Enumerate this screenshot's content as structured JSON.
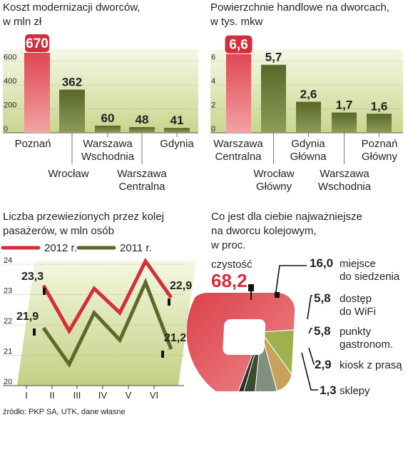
{
  "colors": {
    "red": "#d22f3c",
    "red_bar": "#e8515b",
    "olive": "#5b6a2a",
    "olive_bar": "#6b7a35",
    "green_light": "#9db24f",
    "tan": "#c7a25c",
    "grey_green": "#7f9080",
    "dark": "#2e2e2e",
    "bg_gradient_top": "#f4f7df",
    "bg_gradient_bottom": "#c9d58c"
  },
  "source_note": "źródło: PKP SA, UTK, dane własne",
  "chart_data": [
    {
      "type": "bar",
      "title_lines": [
        "Koszt modernizacji dworców,",
        "w mln zł"
      ],
      "ylim": [
        0,
        700
      ],
      "yticks": [
        "0",
        "200",
        "400",
        "600"
      ],
      "ytick_values": [
        0,
        200,
        400,
        600
      ],
      "categories": [
        "Poznań",
        "Wrocław",
        "Warszawa Wschodnia",
        "Warszawa Centralna",
        "Gdynia"
      ],
      "category_lines": [
        [
          "Poznań"
        ],
        [
          "Wrocław"
        ],
        [
          "Warszawa",
          "Wschodnia"
        ],
        [
          "Warszawa",
          "Centralna"
        ],
        [
          "Gdynia"
        ]
      ],
      "values": [
        670,
        362,
        60,
        48,
        41
      ],
      "value_labels": [
        "670",
        "362",
        "60",
        "48",
        "41"
      ]
    },
    {
      "type": "bar",
      "title_lines": [
        "Powierzchnie handlowe na dworcach,",
        "w tys. mkw"
      ],
      "ylim": [
        0,
        7
      ],
      "yticks": [
        "0",
        "2",
        "4",
        "6"
      ],
      "ytick_values": [
        0,
        2,
        4,
        6
      ],
      "categories": [
        "Warszawa Centralna",
        "Wrocław Główny",
        "Gdynia Główna",
        "Warszawa Wschodnia",
        "Poznań Główny"
      ],
      "category_lines": [
        [
          "Warszawa",
          "Centralna"
        ],
        [
          "Wrocław",
          "Główny"
        ],
        [
          "Gdynia",
          "Główna"
        ],
        [
          "Warszawa",
          "Wschodnia"
        ],
        [
          "Poznań",
          "Główny"
        ]
      ],
      "values": [
        6.6,
        5.7,
        2.6,
        1.7,
        1.6
      ],
      "value_labels": [
        "6,6",
        "5,7",
        "2,6",
        "1,7",
        "1,6"
      ]
    },
    {
      "type": "line",
      "title_lines": [
        "Liczba przewiezionych przez kolej",
        "pasażerów, w mln osób"
      ],
      "categories": [
        "I",
        "II",
        "III",
        "IV",
        "V",
        "VI"
      ],
      "ylim": [
        20,
        24
      ],
      "yticks": [
        "20",
        "21",
        "22",
        "23",
        "24"
      ],
      "ytick_values": [
        20,
        21,
        22,
        23,
        24
      ],
      "series": [
        {
          "name": "2012 r.",
          "values": [
            23.3,
            21.8,
            23.2,
            22.4,
            24.1,
            22.9
          ],
          "start_label": "23,3",
          "end_label": "22,9"
        },
        {
          "name": "2011 r.",
          "values": [
            21.9,
            20.7,
            22.4,
            21.5,
            23.4,
            21.2
          ],
          "start_label": "21,9",
          "end_label": "21,2"
        }
      ]
    },
    {
      "type": "pie",
      "title_lines": [
        "Co jest dla ciebie najważniejsze",
        "na dworcu kolejowym,",
        "w  proc."
      ],
      "slices": [
        {
          "value": 68.2,
          "value_label": "68,2",
          "label_lines": [
            "czystość"
          ]
        },
        {
          "value": 16.0,
          "value_label": "16,0",
          "label_lines": [
            "miejsce",
            "do siedzenia"
          ]
        },
        {
          "value": 5.8,
          "value_label": "5,8",
          "label_lines": [
            "dostęp",
            "do WiFi"
          ]
        },
        {
          "value": 5.8,
          "value_label": "5,8",
          "label_lines": [
            "punkty",
            "gastronom."
          ]
        },
        {
          "value": 2.9,
          "value_label": "2,9",
          "label_lines": [
            "kiosk z prasą"
          ]
        },
        {
          "value": 1.3,
          "value_label": "1,3",
          "label_lines": [
            "sklepy"
          ]
        }
      ]
    }
  ]
}
